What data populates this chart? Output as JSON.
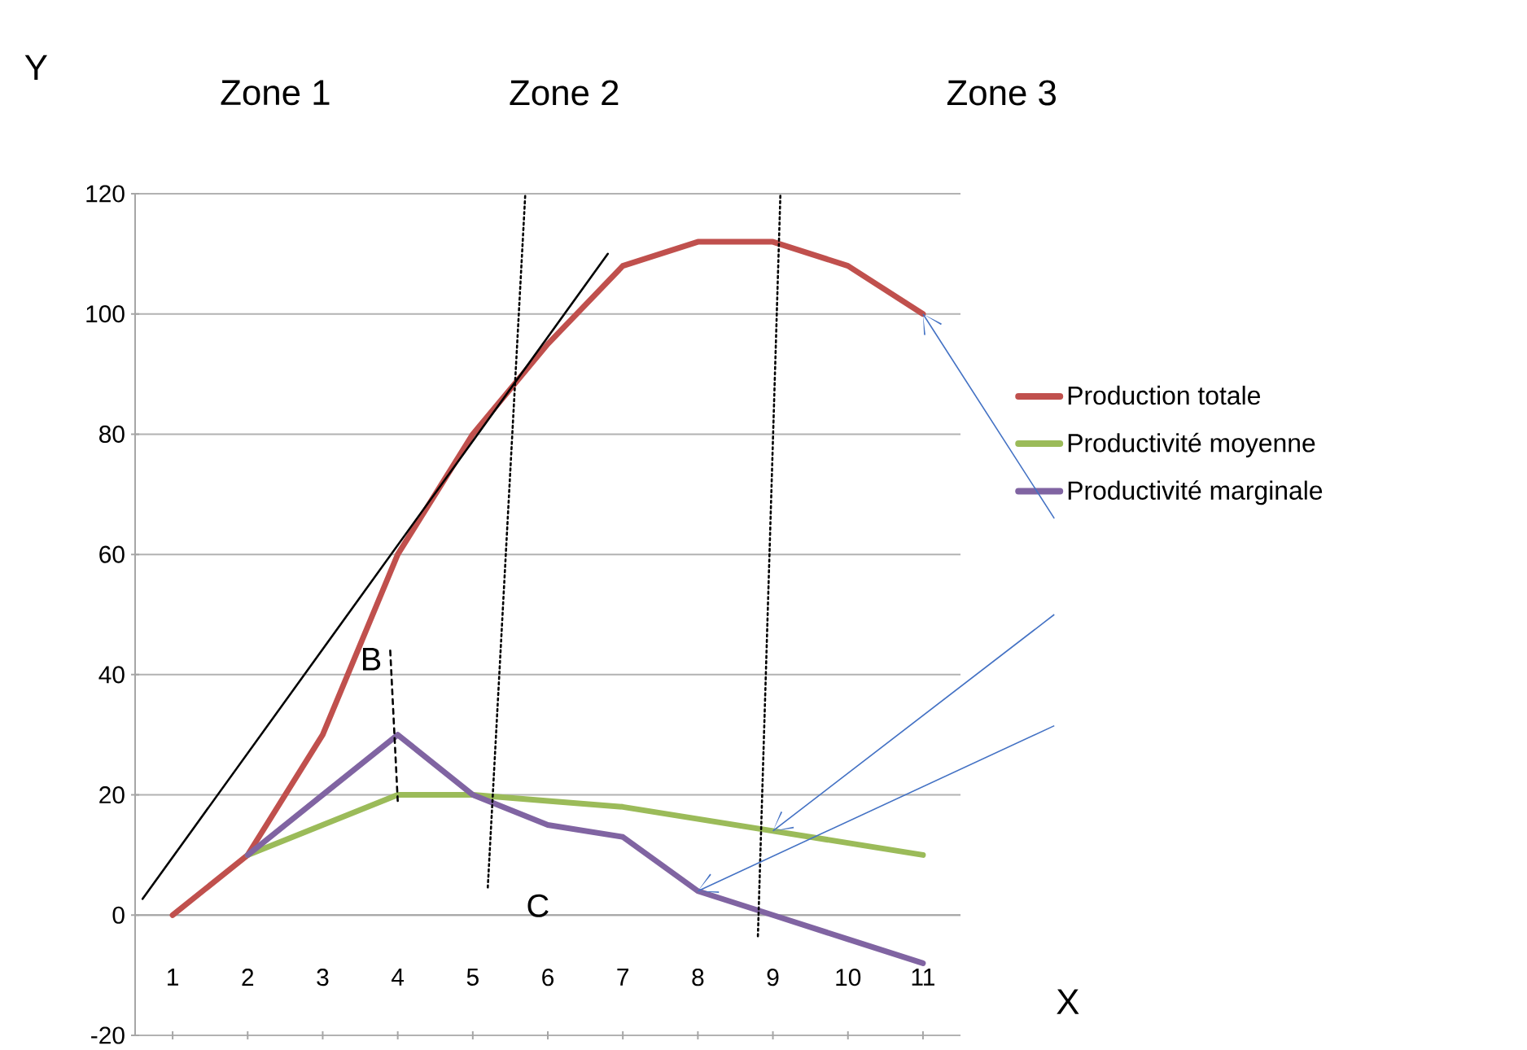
{
  "chart_data": {
    "type": "line",
    "xlabel": "X",
    "ylabel": "Y",
    "x": [
      1,
      2,
      3,
      4,
      5,
      6,
      7,
      8,
      9,
      10,
      11
    ],
    "xlim": [
      0.5,
      11.5
    ],
    "xticks": [
      1,
      2,
      3,
      4,
      5,
      6,
      7,
      8,
      9,
      10,
      11
    ],
    "ylim": [
      -20,
      120
    ],
    "yticks": [
      -20,
      0,
      20,
      40,
      60,
      80,
      100,
      120
    ],
    "grid": "y",
    "legend": "right",
    "marker": "none",
    "series": [
      {
        "name": "Production totale",
        "color": "#c0504d",
        "values": [
          0,
          10,
          30,
          60,
          80,
          95,
          108,
          112,
          112,
          108,
          100
        ]
      },
      {
        "name": "Productivité moyenne",
        "color": "#9bbb59",
        "values": [
          null,
          10,
          15,
          20,
          20,
          19,
          18,
          16,
          14,
          12,
          10
        ]
      },
      {
        "name": "Productivité marginale",
        "color": "#8064a2",
        "values": [
          null,
          10,
          20,
          30,
          20,
          15,
          13,
          4,
          0,
          -4,
          -8
        ]
      },
      {
        "type": "line",
        "color": "#000000",
        "line_style": "solid",
        "x": [
          0.6,
          6.8
        ],
        "values": [
          2.7,
          110
        ]
      },
      {
        "type": "line",
        "color": "#000000",
        "line_style": "dotted",
        "x": [
          5.2,
          5.7
        ],
        "values": [
          4.6,
          120
        ]
      },
      {
        "type": "line",
        "color": "#000000",
        "line_style": "dotted",
        "x": [
          8.8,
          9.1
        ],
        "values": [
          -3.5,
          120
        ]
      },
      {
        "type": "line",
        "color": "#000000",
        "line_style": "dashed",
        "x": [
          3.9,
          4.0
        ],
        "values": [
          44,
          19
        ]
      }
    ],
    "annotations": [
      "Zone 1",
      "Zone 2",
      "Zone 3",
      "B",
      "C"
    ]
  }
}
